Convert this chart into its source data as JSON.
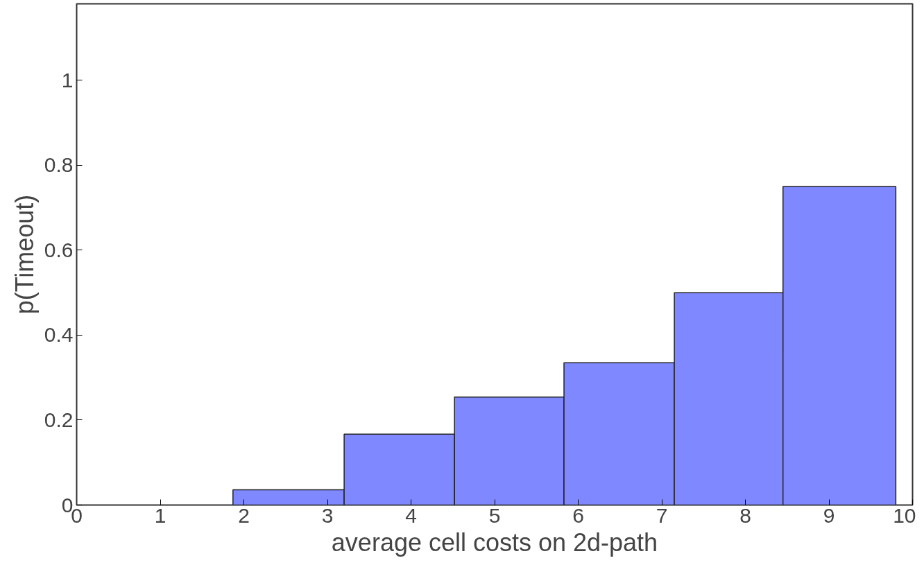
{
  "chart_data": {
    "type": "histogram",
    "xlabel": "average cell costs on 2d-path",
    "ylabel": "p(Timeout)",
    "bins": [
      1.87,
      3.2,
      4.52,
      5.83,
      7.15,
      8.45,
      9.8
    ],
    "values": [
      0.036,
      0.167,
      0.254,
      0.335,
      0.5,
      0.75
    ],
    "color": "#7f88ff",
    "xlim": [
      0,
      10
    ],
    "xticks": [
      0,
      1,
      2,
      3,
      4,
      5,
      6,
      7,
      8,
      9,
      10
    ],
    "ylim": [
      0,
      1.18
    ],
    "yticks": [
      0,
      0.2,
      0.4,
      0.6,
      0.8,
      1
    ],
    "grid": false
  }
}
